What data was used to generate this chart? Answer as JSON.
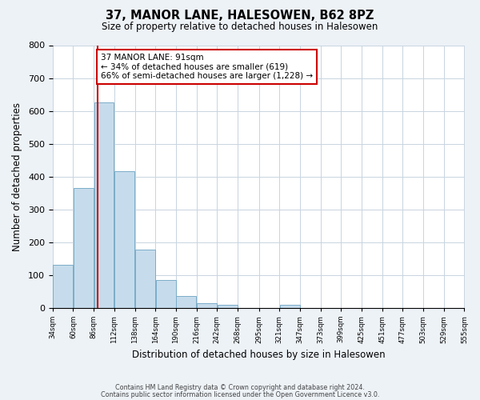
{
  "title": "37, MANOR LANE, HALESOWEN, B62 8PZ",
  "subtitle": "Size of property relative to detached houses in Halesowen",
  "xlabel": "Distribution of detached houses by size in Halesowen",
  "ylabel": "Number of detached properties",
  "bar_values": [
    130,
    365,
    625,
    415,
    178,
    85,
    35,
    13,
    8,
    0,
    0,
    8,
    0,
    0,
    0,
    0,
    0,
    0,
    0,
    0
  ],
  "bin_labels": [
    "34sqm",
    "60sqm",
    "86sqm",
    "112sqm",
    "138sqm",
    "164sqm",
    "190sqm",
    "216sqm",
    "242sqm",
    "268sqm",
    "295sqm",
    "321sqm",
    "347sqm",
    "373sqm",
    "399sqm",
    "425sqm",
    "451sqm",
    "477sqm",
    "503sqm",
    "529sqm",
    "555sqm"
  ],
  "bin_edges": [
    34,
    60,
    86,
    112,
    138,
    164,
    190,
    216,
    242,
    268,
    295,
    321,
    347,
    373,
    399,
    425,
    451,
    477,
    503,
    529,
    555
  ],
  "bar_color": "#c6dcec",
  "bar_edge_color": "#7aadc8",
  "vline_x": 91,
  "vline_color": "#cc0000",
  "ylim": [
    0,
    800
  ],
  "yticks": [
    0,
    100,
    200,
    300,
    400,
    500,
    600,
    700,
    800
  ],
  "annotation_title": "37 MANOR LANE: 91sqm",
  "annotation_line1": "← 34% of detached houses are smaller (619)",
  "annotation_line2": "66% of semi-detached houses are larger (1,228) →",
  "annotation_box_color": "#cc0000",
  "footer_line1": "Contains HM Land Registry data © Crown copyright and database right 2024.",
  "footer_line2": "Contains public sector information licensed under the Open Government Licence v3.0.",
  "bg_color": "#edf2f7",
  "plot_bg_color": "#ffffff"
}
